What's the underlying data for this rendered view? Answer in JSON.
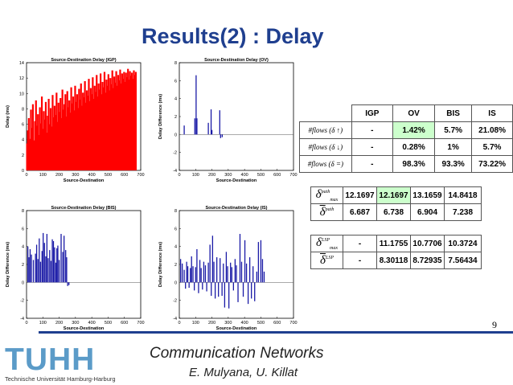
{
  "slide": {
    "title": "Results(2) : Delay",
    "page_number": "9",
    "footer_title": "Communication Networks",
    "footer_authors": "E. Mulyana, U. Killat",
    "logo_text": "TUHH",
    "logo_subtitle": "Technische Universität Hamburg-Harburg"
  },
  "colors": {
    "title": "#1f3f8f",
    "igp_series": "#ff0000",
    "ov_series": "#1a1aa6",
    "highlight": "#ccffcc",
    "logo": "#5b9bc8"
  },
  "chart_data": [
    {
      "type": "bar",
      "title": "Source-Destination Delay (IGP)",
      "xlabel": "Source-Destination",
      "ylabel": "Delay (ms)",
      "xlim": [
        0,
        700
      ],
      "ylim": [
        0,
        14
      ],
      "xticks": [
        0,
        100,
        200,
        300,
        400,
        500,
        600,
        700
      ],
      "yticks": [
        0,
        2,
        4,
        6,
        8,
        10,
        12,
        14
      ],
      "color": "#ff0000",
      "bars": [
        [
          3,
          3.5
        ],
        [
          8,
          5.2
        ],
        [
          14,
          6.8
        ],
        [
          20,
          4.1
        ],
        [
          27,
          7.9
        ],
        [
          33,
          5.5
        ],
        [
          39,
          8.6
        ],
        [
          46,
          3.9
        ],
        [
          52,
          6.4
        ],
        [
          58,
          9.1
        ],
        [
          64,
          5.8
        ],
        [
          70,
          7.3
        ],
        [
          76,
          4.6
        ],
        [
          82,
          8.2
        ],
        [
          88,
          6.1
        ],
        [
          94,
          9.6
        ],
        [
          100,
          5.4
        ],
        [
          106,
          7.7
        ],
        [
          112,
          6.6
        ],
        [
          118,
          8.9
        ],
        [
          124,
          4.9
        ],
        [
          130,
          7.1
        ],
        [
          136,
          9.3
        ],
        [
          142,
          6.0
        ],
        [
          148,
          8.1
        ],
        [
          154,
          5.7
        ],
        [
          160,
          9.8
        ],
        [
          166,
          6.9
        ],
        [
          172,
          8.4
        ],
        [
          178,
          7.2
        ],
        [
          184,
          10.1
        ],
        [
          190,
          6.3
        ],
        [
          196,
          8.8
        ],
        [
          202,
          7.6
        ],
        [
          208,
          9.4
        ],
        [
          214,
          6.8
        ],
        [
          220,
          10.5
        ],
        [
          226,
          7.9
        ],
        [
          232,
          8.6
        ],
        [
          238,
          9.9
        ],
        [
          244,
          7.0
        ],
        [
          250,
          10.3
        ],
        [
          256,
          8.2
        ],
        [
          262,
          9.1
        ],
        [
          268,
          7.5
        ],
        [
          274,
          10.8
        ],
        [
          280,
          8.7
        ],
        [
          286,
          9.6
        ],
        [
          292,
          7.8
        ],
        [
          298,
          11.0
        ],
        [
          304,
          8.9
        ],
        [
          310,
          9.9
        ],
        [
          316,
          8.1
        ],
        [
          322,
          10.6
        ],
        [
          328,
          9.2
        ],
        [
          334,
          11.3
        ],
        [
          340,
          8.4
        ],
        [
          346,
          10.1
        ],
        [
          352,
          9.5
        ],
        [
          358,
          11.6
        ],
        [
          364,
          8.8
        ],
        [
          370,
          10.4
        ],
        [
          376,
          9.7
        ],
        [
          382,
          11.9
        ],
        [
          388,
          9.0
        ],
        [
          394,
          10.7
        ],
        [
          400,
          9.9
        ],
        [
          406,
          12.1
        ],
        [
          412,
          9.3
        ],
        [
          418,
          11.0
        ],
        [
          424,
          10.2
        ],
        [
          430,
          12.4
        ],
        [
          436,
          9.6
        ],
        [
          442,
          11.3
        ],
        [
          448,
          10.5
        ],
        [
          454,
          12.6
        ],
        [
          460,
          9.9
        ],
        [
          466,
          11.5
        ],
        [
          472,
          10.8
        ],
        [
          478,
          12.8
        ],
        [
          484,
          10.1
        ],
        [
          490,
          11.8
        ],
        [
          496,
          11.0
        ],
        [
          502,
          12.5
        ],
        [
          508,
          10.4
        ],
        [
          514,
          12.0
        ],
        [
          520,
          11.2
        ],
        [
          526,
          13.0
        ],
        [
          532,
          10.7
        ],
        [
          538,
          12.2
        ],
        [
          544,
          11.4
        ],
        [
          550,
          12.9
        ],
        [
          556,
          11.0
        ],
        [
          562,
          12.4
        ],
        [
          568,
          11.7
        ],
        [
          574,
          13.1
        ],
        [
          580,
          11.3
        ],
        [
          586,
          12.6
        ],
        [
          592,
          11.9
        ],
        [
          598,
          12.8
        ],
        [
          604,
          11.5
        ],
        [
          610,
          12.7
        ],
        [
          616,
          12.1
        ],
        [
          622,
          13.2
        ],
        [
          628,
          11.8
        ],
        [
          634,
          12.9
        ],
        [
          640,
          12.3
        ],
        [
          646,
          12.7
        ],
        [
          652,
          11.9
        ],
        [
          658,
          13.0
        ],
        [
          664,
          12.4
        ],
        [
          670,
          12.8
        ]
      ]
    },
    {
      "type": "bar",
      "title": "Source-Destination Delay (OV)",
      "xlabel": "Source-Destination",
      "ylabel": "Delay Difference (ms)",
      "xlim": [
        0,
        700
      ],
      "ylim": [
        -4,
        8
      ],
      "xticks": [
        0,
        100,
        200,
        300,
        400,
        500,
        600,
        700
      ],
      "yticks": [
        -4,
        -2,
        0,
        2,
        4,
        6,
        8
      ],
      "color": "#1a1aa6",
      "bars": [
        [
          30,
          1.0
        ],
        [
          95,
          1.8
        ],
        [
          103,
          6.6
        ],
        [
          108,
          1.8
        ],
        [
          178,
          1.3
        ],
        [
          195,
          2.8
        ],
        [
          200,
          0.5
        ],
        [
          248,
          2.7
        ],
        [
          253,
          -0.4
        ],
        [
          263,
          -0.3
        ]
      ]
    },
    {
      "type": "bar",
      "title": "Source-Destination Delay (BIS)",
      "xlabel": "Source-Destination",
      "ylabel": "Delay Difference (ms)",
      "xlim": [
        0,
        700
      ],
      "ylim": [
        -4,
        8
      ],
      "xticks": [
        0,
        100,
        200,
        300,
        400,
        500,
        600,
        700
      ],
      "yticks": [
        -4,
        -2,
        0,
        2,
        4,
        6,
        8
      ],
      "color": "#1a1aa6",
      "bars": [
        [
          8,
          4.0
        ],
        [
          15,
          2.8
        ],
        [
          22,
          3.7
        ],
        [
          30,
          3.1
        ],
        [
          42,
          2.5
        ],
        [
          55,
          3.2
        ],
        [
          62,
          4.2
        ],
        [
          70,
          2.6
        ],
        [
          78,
          4.9
        ],
        [
          86,
          2.3
        ],
        [
          95,
          3.5
        ],
        [
          102,
          5.5
        ],
        [
          110,
          4.4
        ],
        [
          118,
          2.9
        ],
        [
          125,
          5.4
        ],
        [
          133,
          2.7
        ],
        [
          142,
          3.6
        ],
        [
          150,
          2.4
        ],
        [
          158,
          4.8
        ],
        [
          165,
          4.6
        ],
        [
          172,
          3.9
        ],
        [
          180,
          2.2
        ],
        [
          186,
          3.8
        ],
        [
          192,
          4.1
        ],
        [
          200,
          2.5
        ],
        [
          212,
          5.4
        ],
        [
          222,
          3.4
        ],
        [
          230,
          5.2
        ],
        [
          240,
          3.6
        ],
        [
          246,
          2.8
        ],
        [
          252,
          -0.4
        ],
        [
          260,
          -0.3
        ]
      ]
    },
    {
      "type": "bar",
      "title": "Source-Destination Delay (IS)",
      "xlabel": "Source-Destination",
      "ylabel": "Delay Difference (ms)",
      "xlim": [
        0,
        700
      ],
      "ylim": [
        -4,
        8
      ],
      "xticks": [
        0,
        100,
        200,
        300,
        400,
        500,
        600,
        700
      ],
      "yticks": [
        -4,
        -2,
        0,
        2,
        4,
        6,
        8
      ],
      "color": "#1a1aa6",
      "bars": [
        [
          8,
          2.6
        ],
        [
          18,
          2.1
        ],
        [
          30,
          1.4
        ],
        [
          38,
          -0.7
        ],
        [
          45,
          2.3
        ],
        [
          52,
          1.8
        ],
        [
          60,
          -0.6
        ],
        [
          68,
          1.6
        ],
        [
          75,
          2.9
        ],
        [
          84,
          1.8
        ],
        [
          92,
          -0.9
        ],
        [
          100,
          1.7
        ],
        [
          108,
          3.7
        ],
        [
          118,
          -1.2
        ],
        [
          126,
          2.5
        ],
        [
          134,
          1.6
        ],
        [
          142,
          -0.8
        ],
        [
          150,
          2.3
        ],
        [
          160,
          1.9
        ],
        [
          168,
          -1.0
        ],
        [
          178,
          2.2
        ],
        [
          188,
          4.2
        ],
        [
          196,
          -1.5
        ],
        [
          204,
          5.2
        ],
        [
          212,
          2.3
        ],
        [
          220,
          -1.8
        ],
        [
          230,
          2.8
        ],
        [
          240,
          -1.6
        ],
        [
          250,
          2.7
        ],
        [
          262,
          -1.5
        ],
        [
          270,
          2.1
        ],
        [
          278,
          -2.8
        ],
        [
          288,
          3.4
        ],
        [
          296,
          1.8
        ],
        [
          304,
          -2.9
        ],
        [
          314,
          2.2
        ],
        [
          322,
          1.7
        ],
        [
          332,
          -0.9
        ],
        [
          342,
          2.6
        ],
        [
          350,
          1.9
        ],
        [
          360,
          -2.2
        ],
        [
          372,
          5.4
        ],
        [
          382,
          2.3
        ],
        [
          392,
          -1.6
        ],
        [
          402,
          4.7
        ],
        [
          412,
          2.1
        ],
        [
          422,
          -2.4
        ],
        [
          432,
          2.8
        ],
        [
          442,
          -1.8
        ],
        [
          452,
          1.8
        ],
        [
          462,
          -2.1
        ],
        [
          475,
          1.2
        ],
        [
          485,
          4.5
        ],
        [
          500,
          4.7
        ],
        [
          510,
          2.6
        ],
        [
          520,
          1.2
        ]
      ]
    }
  ],
  "table1": {
    "headers": [
      "IGP",
      "OV",
      "BIS",
      "IS"
    ],
    "rows": [
      {
        "label": "#flows (δ ↑)",
        "values": [
          "-",
          "1.42%",
          "5.7%",
          "21.08%"
        ]
      },
      {
        "label": "#flows (δ ↓)",
        "values": [
          "-",
          "0.28%",
          "1%",
          "5.7%"
        ]
      },
      {
        "label": "#flows (δ =)",
        "values": [
          "-",
          "98.3%",
          "93.3%",
          "73.22%"
        ]
      }
    ]
  },
  "table2": {
    "rows": [
      {
        "symbol": "δ",
        "sup": "path",
        "sub": "max",
        "bar": false,
        "values": [
          "12.1697",
          "12.1697",
          "13.1659",
          "14.8418"
        ]
      },
      {
        "symbol": "δ",
        "sup": "path",
        "sub": "",
        "bar": true,
        "values": [
          "6.687",
          "6.738",
          "6.904",
          "7.238"
        ]
      }
    ]
  },
  "table3": {
    "rows": [
      {
        "symbol": "δ",
        "sup": "LSP",
        "sub": "max",
        "bar": false,
        "values": [
          "-",
          "11.1755",
          "10.7706",
          "10.3724"
        ]
      },
      {
        "symbol": "δ",
        "sup": "LSP",
        "sub": "",
        "bar": true,
        "values": [
          "-",
          "8.30118",
          "8.72935",
          "7.56434"
        ]
      }
    ]
  }
}
